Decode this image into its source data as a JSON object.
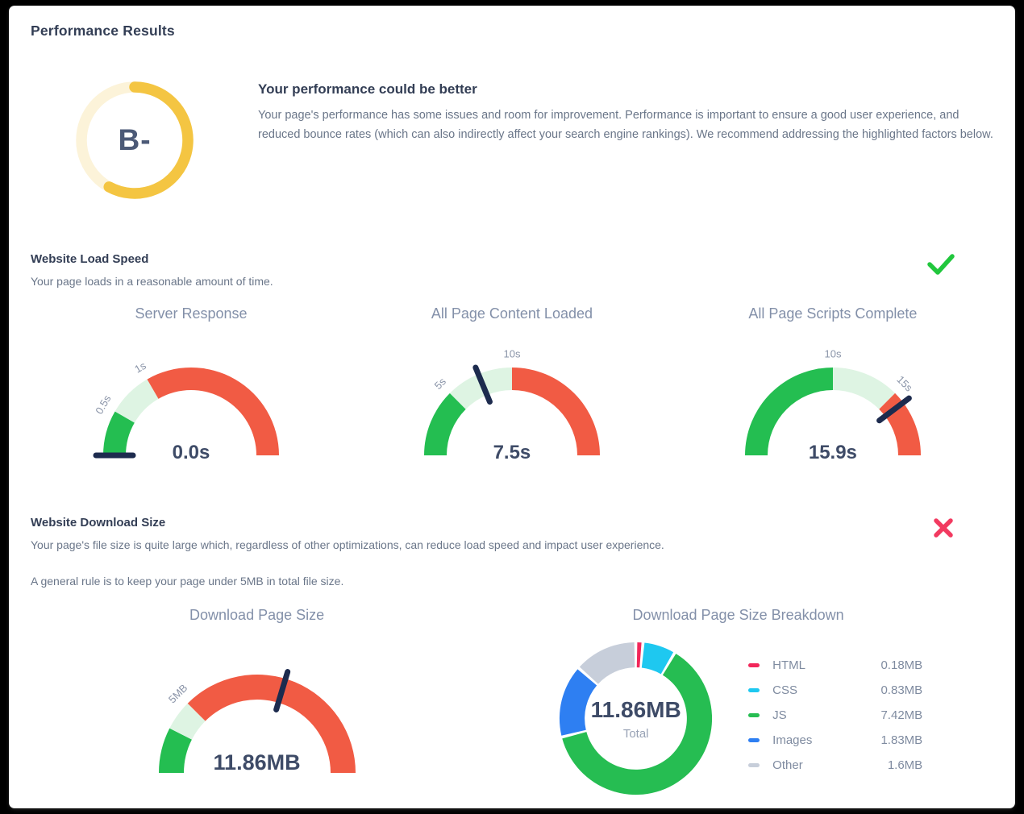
{
  "page": {
    "title": "Performance Results"
  },
  "summary": {
    "grade": "B-",
    "grade_arc_percent": 58,
    "grade_color": "#F4C542",
    "grade_track_color": "#FCF3D9",
    "heading": "Your performance could be better",
    "body": "Your page's performance has some issues and room for improvement. Performance is important to ensure a good user experience, and reduced bounce rates (which can also indirectly affect your search engine rankings). We recommend addressing the highlighted factors below."
  },
  "colors": {
    "needle": "#1D2B4E",
    "tick_label": "#8A94A8",
    "check": "#21C73D",
    "cross": "#F23A60"
  },
  "sections": [
    {
      "title": "Website Load Speed",
      "subtitle": "Your page loads in a reasonable amount of time.",
      "status": "pass"
    },
    {
      "title": "Website Download Size",
      "subtitle": "Your page's file size is quite large which, regardless of other optimizations, can reduce load speed and impact user experience.",
      "note": "A general rule is to keep your page under 5MB in total file size.",
      "status": "fail"
    }
  ],
  "chart_data": [
    {
      "type": "gauge",
      "title": "Server Response",
      "value": 0.0,
      "display": "0.0s",
      "min": 0,
      "max": 3,
      "segments": [
        {
          "from": 0,
          "to": 0.5,
          "color": "#24BE51"
        },
        {
          "from": 0.5,
          "to": 1,
          "color": "#DEF4E3"
        },
        {
          "from": 1,
          "to": 3,
          "color": "#F15B44"
        }
      ],
      "ticks": [
        {
          "value": 0.5,
          "label": "0.5s"
        },
        {
          "value": 1,
          "label": "1s"
        }
      ]
    },
    {
      "type": "gauge",
      "title": "All Page Content Loaded",
      "value": 7.5,
      "display": "7.5s",
      "min": 0,
      "max": 20,
      "segments": [
        {
          "from": 0,
          "to": 5,
          "color": "#24BE51"
        },
        {
          "from": 5,
          "to": 10,
          "color": "#DEF4E3"
        },
        {
          "from": 10,
          "to": 20,
          "color": "#F15B44"
        }
      ],
      "ticks": [
        {
          "value": 5,
          "label": "5s"
        },
        {
          "value": 10,
          "label": "10s"
        }
      ]
    },
    {
      "type": "gauge",
      "title": "All Page Scripts Complete",
      "value": 15.9,
      "display": "15.9s",
      "min": 0,
      "max": 20,
      "segments": [
        {
          "from": 0,
          "to": 10,
          "color": "#24BE51"
        },
        {
          "from": 10,
          "to": 15,
          "color": "#DEF4E3"
        },
        {
          "from": 15,
          "to": 20,
          "color": "#F15B44"
        }
      ],
      "ticks": [
        {
          "value": 10,
          "label": "10s"
        },
        {
          "value": 15,
          "label": "15s"
        }
      ]
    },
    {
      "type": "gauge",
      "title": "Download Page Size",
      "value": 11.86,
      "display": "11.86MB",
      "min": 0,
      "max": 20,
      "segments": [
        {
          "from": 0,
          "to": 3,
          "color": "#24BE51"
        },
        {
          "from": 3,
          "to": 5,
          "color": "#DEF4E3"
        },
        {
          "from": 5,
          "to": 20,
          "color": "#F15B44"
        }
      ],
      "ticks": [
        {
          "value": 5,
          "label": "5MB"
        }
      ]
    },
    {
      "type": "donut",
      "title": "Download Page Size Breakdown",
      "center_label": "11.86MB",
      "center_sublabel": "Total",
      "slices": [
        {
          "label": "HTML",
          "value": 0.18,
          "display": "0.18MB",
          "color": "#F2275A"
        },
        {
          "label": "CSS",
          "value": 0.83,
          "display": "0.83MB",
          "color": "#1EC8F0"
        },
        {
          "label": "JS",
          "value": 7.42,
          "display": "7.42MB",
          "color": "#26BD52"
        },
        {
          "label": "Images",
          "value": 1.83,
          "display": "1.83MB",
          "color": "#2E7FF2"
        },
        {
          "label": "Other",
          "value": 1.6,
          "display": "1.6MB",
          "color": "#C7CEDA"
        }
      ]
    }
  ]
}
